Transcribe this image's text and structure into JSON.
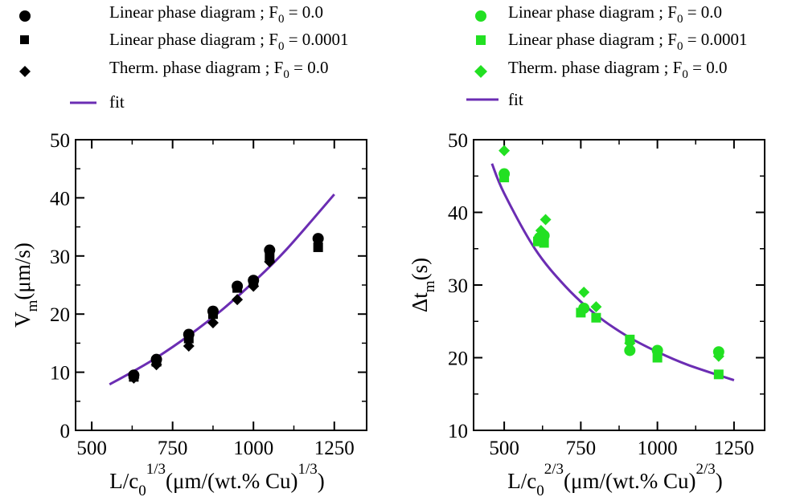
{
  "legend_left": [
    {
      "label": "Linear phase diagram ; F",
      "sub": "0",
      "tail": " = 0.0",
      "marker": "circle",
      "color": "#000000"
    },
    {
      "label": "Linear phase diagram ; F",
      "sub": "0",
      "tail": " = 0.0001",
      "marker": "square",
      "color": "#000000"
    },
    {
      "label": "Therm. phase diagram ; F",
      "sub": "0",
      "tail": " = 0.0",
      "marker": "diamond",
      "color": "#000000"
    },
    {
      "label": "fit",
      "sub": "",
      "tail": "",
      "marker": "line",
      "color": "#6b2db3"
    }
  ],
  "legend_right": [
    {
      "label": "Linear phase diagram ; F",
      "sub": "0",
      "tail": " = 0.0",
      "marker": "circle",
      "color": "#22e022"
    },
    {
      "label": "Linear phase diagram ; F",
      "sub": "0",
      "tail": " = 0.0001",
      "marker": "square",
      "color": "#22e022"
    },
    {
      "label": "Therm. phase diagram ; F",
      "sub": "0",
      "tail": " = 0.0",
      "marker": "diamond",
      "color": "#22e022"
    },
    {
      "label": "fit",
      "sub": "",
      "tail": "",
      "marker": "line",
      "color": "#6b2db3"
    }
  ],
  "chart_data": [
    {
      "type": "scatter",
      "xlabel": {
        "main": "L/c",
        "sub": "0",
        "sup": "1/3",
        "rest": "(μm/(wt.% Cu)",
        "sup2": "1/3",
        "close": ")"
      },
      "ylabel": {
        "main": "V",
        "sub": "m",
        "rest": "(μm/s)"
      },
      "xlim": [
        450,
        1350
      ],
      "ylim": [
        0,
        50
      ],
      "xticks": [
        500,
        750,
        1000,
        1250
      ],
      "yticks": [
        0,
        10,
        20,
        30,
        40,
        50
      ],
      "grid": false,
      "marker_color": "#000000",
      "fit_color": "#6b2db3",
      "series": [
        {
          "name": "Linear phase diagram ; F0 = 0.0",
          "marker": "circle",
          "x": [
            630,
            700,
            800,
            875,
            950,
            1000,
            1050,
            1200
          ],
          "y": [
            9.5,
            12.2,
            16.5,
            20.5,
            24.8,
            25.8,
            31.0,
            33.0
          ]
        },
        {
          "name": "Linear phase diagram ; F0 = 0.0001",
          "marker": "square",
          "x": [
            630,
            700,
            800,
            875,
            950,
            1000,
            1050,
            1200
          ],
          "y": [
            9.2,
            11.8,
            15.8,
            20.0,
            24.5,
            25.5,
            30.0,
            31.5
          ]
        },
        {
          "name": "Therm. phase diagram ; F0 = 0.0",
          "marker": "diamond",
          "x": [
            630,
            700,
            800,
            875,
            950,
            1000,
            1050
          ],
          "y": [
            9.0,
            11.3,
            14.5,
            18.5,
            22.5,
            24.8,
            29.0
          ]
        }
      ],
      "fit": {
        "name": "fit",
        "x": [
          555,
          630,
          700,
          800,
          900,
          1000,
          1100,
          1250
        ],
        "y": [
          7.9,
          10.2,
          12.5,
          16.3,
          20.6,
          25.5,
          31.0,
          40.6
        ]
      }
    },
    {
      "type": "scatter",
      "xlabel": {
        "main": "L/c",
        "sub": "0",
        "sup": "2/3",
        "rest": "(μm/(wt.% Cu)",
        "sup2": "2/3",
        "close": ")"
      },
      "ylabel": {
        "main": "Δt",
        "sub": "m",
        "rest": "(s)"
      },
      "xlim": [
        400,
        1350
      ],
      "ylim": [
        10,
        50
      ],
      "xticks": [
        500,
        750,
        1000,
        1250
      ],
      "yticks": [
        10,
        20,
        30,
        40,
        50
      ],
      "grid": false,
      "marker_color": "#22e022",
      "fit_color": "#6b2db3",
      "series": [
        {
          "name": "Linear phase diagram ; F0 = 0.0",
          "marker": "circle",
          "x": [
            500,
            615,
            630,
            760,
            910,
            1000,
            1200
          ],
          "y": [
            45.3,
            36.5,
            36.8,
            26.8,
            21.0,
            21.0,
            20.8
          ]
        },
        {
          "name": "Linear phase diagram ; F0 = 0.0001",
          "marker": "square",
          "x": [
            500,
            610,
            630,
            750,
            800,
            910,
            1000,
            1200
          ],
          "y": [
            44.8,
            36.0,
            35.8,
            26.2,
            25.5,
            22.5,
            20.0,
            17.7
          ]
        },
        {
          "name": "Therm. phase diagram ; F0 = 0.0",
          "marker": "diamond",
          "x": [
            500,
            620,
            635,
            760,
            800,
            910,
            1200
          ],
          "y": [
            48.5,
            37.5,
            39.0,
            29.0,
            27.0,
            22.0,
            20.2
          ]
        }
      ],
      "fit": {
        "name": "fit",
        "x": [
          460,
          500,
          600,
          700,
          800,
          900,
          1000,
          1100,
          1250
        ],
        "y": [
          46.7,
          42.6,
          35.0,
          29.8,
          25.9,
          23.0,
          20.8,
          19.0,
          16.9
        ]
      }
    }
  ]
}
